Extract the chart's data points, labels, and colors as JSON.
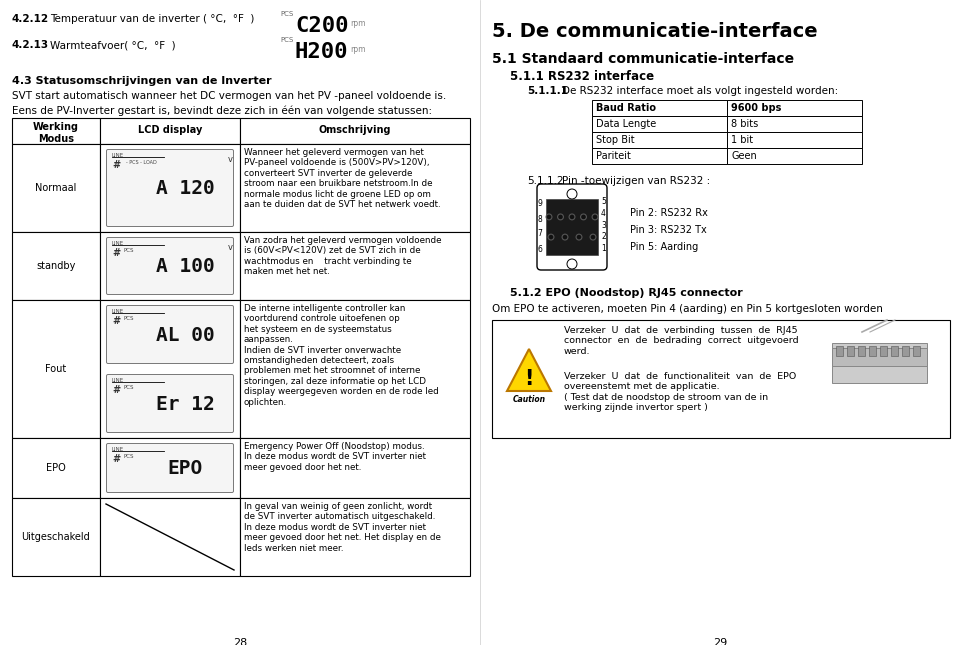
{
  "bg_color": "#ffffff",
  "page_width": 9.6,
  "page_height": 6.45,
  "h421_num": "4.2.12",
  "h421_text": "Temperatuur van de inverter ( °C,  °F  )",
  "h422_num": "4.2.13",
  "h422_text": "Warmteafvoer( °C,  °F  )",
  "lcd_c200": "C200",
  "lcd_h200": "H200",
  "s43_title": "4.3 Statusomschrijvingen van de Inverter",
  "s43_line1": "SVT start automatisch wanneer het DC vermogen van het PV -paneel voldoende is.",
  "s43_line2": "Eens de PV-Inverter gestart is, bevindt deze zich in één van volgende statussen:",
  "tbl_h0": "Werking\nModus",
  "tbl_h1": "LCD display",
  "tbl_h2": "Omschrijving",
  "rows": [
    {
      "mode": "Normaal",
      "lcd": "A 120",
      "rh": 88,
      "desc": "Wanneer het geleverd vermogen van het\nPV-paneel voldoende is (500V>PV>120V),\nconverteert SVT inverter de geleverde\nstroom naar een bruikbare netstroom.In de\nnormale modus licht de groene LED op om\naan te duiden dat de SVT het netwerk voedt."
    },
    {
      "mode": "standby",
      "lcd": "A 100",
      "rh": 68,
      "desc": "Van zodra het geleverd vermogen voldoende\nis (60V<PV<120V) zet de SVT zich in de\nwachtmodus en    tracht verbinding te\nmaken met het net."
    },
    {
      "mode": "Fout",
      "lcd": "AL 00\nEr 12",
      "rh": 138,
      "desc": "De interne intelligente controller kan\nvoortdurend controle uitoefenen op\nhet systeem en de systeemstatus\naanpassen.\nIndien de SVT inverter onverwachte\nomstandigheden detecteert, zoals\nproblemen met het stroomnet of interne\nstoringen, zal deze informatie op het LCD\ndisplay weergegeven worden en de rode led\noplichten."
    },
    {
      "mode": "EPO",
      "lcd": "EPO",
      "rh": 60,
      "desc": "Emergency Power Off (Noodstop) modus.\nIn deze modus wordt de SVT inverter niet\nmeer gevoed door het net."
    },
    {
      "mode": "Uitgeschakeld",
      "lcd": "",
      "rh": 78,
      "desc": "In geval van weinig of geen zonlicht, wordt\nde SVT inverter automatisch uitgeschakeld.\nIn deze modus wordt de SVT inverter niet\nmeer gevoed door het net. Het display en de\nleds werken niet meer."
    }
  ],
  "page_left": "28",
  "r_title": "5. De communicatie-interface",
  "r_51": "5.1 Standaard communicatie-interface",
  "r_511": "5.1.1 RS232 interface",
  "r_5111_b": "5.1.1.1",
  "r_5111_t": "De RS232 interface moet als volgt ingesteld worden:",
  "rs232_rows": [
    [
      "Baud Ratio",
      "9600 bps"
    ],
    [
      "Data Lengte",
      "8 bits"
    ],
    [
      "Stop Bit",
      "1 bit"
    ],
    [
      "Pariteit",
      "Geen"
    ]
  ],
  "r_5112_b": "5.1.1.2",
  "r_5112_t": "Pin -toewijzigen van RS232 :",
  "pin_left": [
    "9",
    "8",
    "7",
    "6"
  ],
  "pin_right": [
    "5",
    "4",
    "3",
    "2",
    "1"
  ],
  "pin_desc": [
    "Pin 2: RS232 Rx",
    "Pin 3: RS232 Tx",
    "Pin 5: Aarding"
  ],
  "r_512_b": "5.1.2 EPO (Noodstop) RJ45 connector",
  "r_512_t": "Om EPO te activeren, moeten Pin 4 (aarding) en Pin 5 kortgesloten worden",
  "caution_t1": "Verzeker  U  dat  de  verbinding  tussen  de  RJ45\nconnector  en  de  bedrading  correct  uitgevoerd\nwerd.",
  "caution_t2": "Verzeker  U  dat  de  functionaliteit  van  de  EPO\novereenstemt met de applicatie.\n( Test dat de noodstop de stroom van de in\nwerking zijnde invertor spert )",
  "page_right": "29"
}
